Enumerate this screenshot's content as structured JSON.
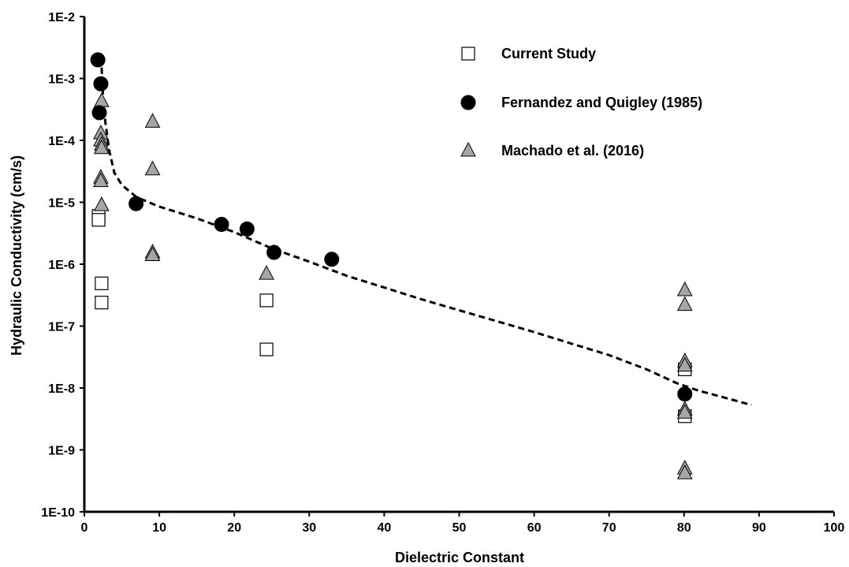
{
  "chart_data": {
    "type": "scatter",
    "title": "",
    "xlabel": "Dielectric Constant",
    "ylabel": "Hydraulic Conductivity (cm/s)",
    "xlim": [
      0,
      100
    ],
    "ylim": [
      1e-10,
      0.01
    ],
    "y_scale": "log",
    "grid": false,
    "legend_position": "top-right",
    "x_ticks": [
      0,
      10,
      20,
      30,
      40,
      50,
      60,
      70,
      80,
      90,
      100
    ],
    "x_tick_labels": [
      "0",
      "10",
      "20",
      "30",
      "40",
      "50",
      "60",
      "70",
      "80",
      "90",
      "100"
    ],
    "y_ticks": [
      1e-10,
      1e-09,
      1e-08,
      1e-07,
      1e-06,
      1e-05,
      0.0001,
      0.001,
      0.01
    ],
    "y_tick_labels": [
      "1E-10",
      "1E-9",
      "1E-8",
      "1E-7",
      "1E-6",
      "1E-5",
      "1E-4",
      "1E-3",
      "1E-2"
    ],
    "series": [
      {
        "name": "Current Study",
        "marker": "square-open",
        "color": "#000000",
        "fill": "#ffffff",
        "points": [
          [
            1.9,
            6e-06
          ],
          [
            1.9,
            5.2e-06
          ],
          [
            2.3,
            4.9e-07
          ],
          [
            2.3,
            2.4e-07
          ],
          [
            24.3,
            2.6e-07
          ],
          [
            24.3,
            4.2e-08
          ],
          [
            80.1,
            2e-08
          ],
          [
            80.1,
            3.5e-09
          ]
        ]
      },
      {
        "name": "Fernandez and Quigley (1985)",
        "marker": "circle-filled",
        "color": "#000000",
        "fill": "#000000",
        "points": [
          [
            1.8,
            0.002
          ],
          [
            2.2,
            0.00082
          ],
          [
            2.0,
            0.00028
          ],
          [
            6.9,
            9.5e-06
          ],
          [
            18.3,
            4.4e-06
          ],
          [
            21.7,
            3.7e-06
          ],
          [
            25.3,
            1.55e-06
          ],
          [
            33.0,
            1.2e-06
          ],
          [
            80.1,
            8e-09
          ]
        ]
      },
      {
        "name": "Machado et al. (2016)",
        "marker": "triangle-filled",
        "color": "#000000",
        "fill": "#a6a6a6",
        "points": [
          [
            2.3,
            0.00043
          ],
          [
            2.2,
            0.00013
          ],
          [
            2.2,
            0.0001
          ],
          [
            2.3,
            8.5e-05
          ],
          [
            2.3,
            7.5e-05
          ],
          [
            2.2,
            2.5e-05
          ],
          [
            2.2,
            2.2e-05
          ],
          [
            2.3,
            9e-06
          ],
          [
            9.1,
            0.0002
          ],
          [
            9.1,
            3.4e-05
          ],
          [
            9.1,
            1.55e-06
          ],
          [
            9.1,
            1.4e-06
          ],
          [
            24.3,
            7e-07
          ],
          [
            80.1,
            3.8e-07
          ],
          [
            80.1,
            2.2e-07
          ],
          [
            80.1,
            2.7e-08
          ],
          [
            80.1,
            2.3e-08
          ],
          [
            80.1,
            4.5e-09
          ],
          [
            80.1,
            4e-09
          ],
          [
            80.1,
            5e-10
          ],
          [
            80.1,
            4.2e-10
          ]
        ]
      }
    ],
    "trendline": {
      "style": "dashed",
      "color": "#000000",
      "points": [
        [
          2.3,
          0.0015
        ],
        [
          2.5,
          0.0005
        ],
        [
          2.8,
          0.0002
        ],
        [
          3.3,
          7e-05
        ],
        [
          4.0,
          3e-05
        ],
        [
          5.0,
          1.9e-05
        ],
        [
          7.0,
          1.2e-05
        ],
        [
          10.0,
          8.5e-06
        ],
        [
          15.0,
          5.5e-06
        ],
        [
          20.0,
          3.3e-06
        ],
        [
          25.0,
          1.8e-06
        ],
        [
          30.0,
          1.1e-06
        ],
        [
          35.0,
          6.5e-07
        ],
        [
          40.0,
          4.2e-07
        ],
        [
          45.0,
          2.7e-07
        ],
        [
          50.0,
          1.8e-07
        ],
        [
          55.0,
          1.2e-07
        ],
        [
          60.0,
          8e-08
        ],
        [
          65.0,
          5.2e-08
        ],
        [
          70.0,
          3.4e-08
        ],
        [
          75.0,
          2e-08
        ],
        [
          79.0,
          1.2e-08
        ],
        [
          82.0,
          9e-09
        ],
        [
          85.0,
          7.2e-09
        ],
        [
          89.0,
          5.3e-09
        ]
      ]
    }
  }
}
